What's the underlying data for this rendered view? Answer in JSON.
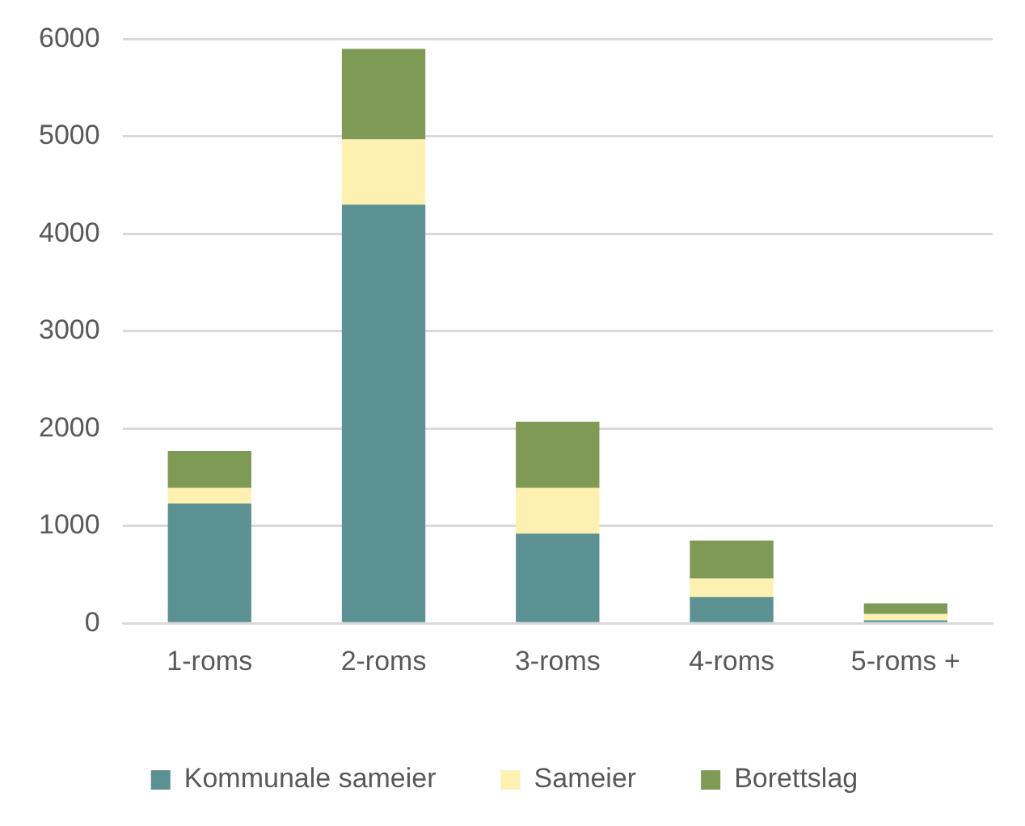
{
  "chart_data": {
    "type": "bar",
    "stacked": true,
    "categories": [
      "1-roms",
      "2-roms",
      "3-roms",
      "4-roms",
      "5-roms +"
    ],
    "series": [
      {
        "name": "Kommunale sameier",
        "color": "#5b9192",
        "values": [
          1230,
          4300,
          920,
          270,
          30
        ]
      },
      {
        "name": "Sameier",
        "color": "#fdf0b0",
        "values": [
          160,
          670,
          470,
          190,
          65
        ]
      },
      {
        "name": "Borettslag",
        "color": "#7f9a55",
        "values": [
          380,
          930,
          680,
          390,
          110
        ]
      }
    ],
    "ylim": [
      0,
      6000
    ],
    "yticks": [
      0,
      1000,
      2000,
      3000,
      4000,
      5000,
      6000
    ],
    "grid": "y",
    "legend": "bottom"
  }
}
